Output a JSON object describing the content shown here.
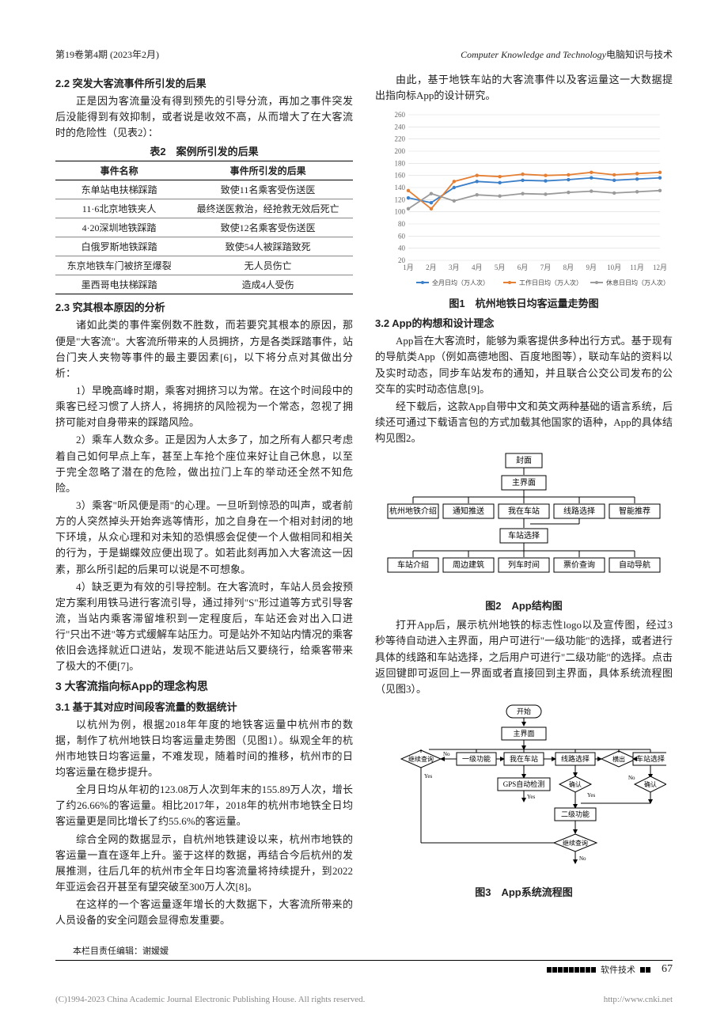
{
  "header": {
    "left": "第19卷第4期 (2023年2月)",
    "right_en": "Computer Knowledge and Technology",
    "right_cn": "电脑知识与技术"
  },
  "left_col": {
    "s22_title": "2.2 突发大客流事件所引发的后果",
    "s22_p1": "正是因为客流量没有得到预先的引导分流，再加之事件突发后没能得到有效抑制，或者说是收效不高，从而增大了在大客流时的危险性（见表2）：",
    "table2_cap": "表2　案例所引发的后果",
    "table2": {
      "cols": [
        "事件名称",
        "事件所引发的后果"
      ],
      "rows": [
        [
          "东单站电扶梯踩踏",
          "致使11名乘客受伤送医"
        ],
        [
          "11·6北京地铁夹人",
          "最终送医救治，经抢救无效后死亡"
        ],
        [
          "4·20深圳地铁踩踏",
          "致使12名乘客受伤送医"
        ],
        [
          "白俄罗斯地铁踩踏",
          "致使54人被踩踏致死"
        ],
        [
          "东京地铁车门被挤至爆裂",
          "无人员伤亡"
        ],
        [
          "墨西哥电扶梯踩踏",
          "造成4人受伤"
        ]
      ]
    },
    "s23_title": "2.3 究其根本原因的分析",
    "s23_p1": "诸如此类的事件案例数不胜数，而若要究其根本的原因，那便是\"大客流\"。大客流所带来的人员拥挤，方是各类踩踏事件，站台门夹人夹物等事件的最主要因素[6]，以下将分点对其做出分析：",
    "s23_p2": "1）早晚高峰时期，乘客对拥挤习以为常。在这个时间段中的乘客已经习惯了人挤人，将拥挤的风险视为一个常态，忽视了拥挤可能对自身带来的踩踏风险。",
    "s23_p3": "2）乘车人数众多。正是因为人太多了，加之所有人都只考虑着自己如何早点上车，甚至上车抢个座位来好让自己休息，以至于完全忽略了潜在的危险，做出拉门上车的举动还全然不知危险。",
    "s23_p4": "3）乘客\"听风便是雨\"的心理。一旦听到惊恐的叫声，或者前方的人突然掉头开始奔逃等情形，加之自身在一个相对封闭的地下环境，从众心理和对未知的恐惧感会促使一个人做相同和相关的行为，于是蝴蝶效应便出现了。如若此刻再加入大客流这一因素，那么所引起的后果可以说是不可想象。",
    "s23_p5": "4）缺乏更为有效的引导控制。在大客流时，车站人员会按预定方案利用铁马进行客流引导，通过排列\"S\"形过道等方式引导客流，当站内乘客滞留堆积到一定程度后，车站还会对出入口进行\"只出不进\"等方式缓解车站压力。可是站外不知站内情况的乘客依旧会选择就近口进站，发现不能进站后又要绕行，给乘客带来了极大的不便[7]。",
    "s3_title": "3 大客流指向标App的理念构思",
    "s31_title": "3.1 基于其对应时间段客流量的数据统计",
    "s31_p1": "以杭州为例，根据2018年年度的地铁客运量中杭州市的数据，制作了杭州地铁日均客运量走势图（见图1）。纵观全年的杭州市地铁日均客运量，不难发现，随着时间的推移，杭州市的日均客运量在稳步提升。",
    "s31_p2": "全月日均从年初的123.08万人次到年末的155.89万人次，增长了约26.66%的客运量。相比2017年，2018年的杭州市地铁全日均客运量更是同比增长了约55.6%的客运量。",
    "s31_p3": "综合全网的数据显示，自杭州地铁建设以来，杭州市地铁的客运量一直在逐年上升。鉴于这样的数据，再结合今后杭州的发展推测，往后几年的杭州市全年日均客流量将持续提升，到2022年亚运会召开甚至有望突破至300万人次[8]。",
    "s31_p4": "在这样的一个客运量逐年增长的大数据下，大客流所带来的人员设备的安全问题会显得愈发重要。"
  },
  "right_col": {
    "intro": "由此，基于地铁车站的大客流事件以及客运量这一大数据提出指向标App的设计研究。",
    "chart1": {
      "type": "line",
      "title": "图1　杭州地铁日均客运量走势图",
      "x_labels": [
        "1月",
        "2月",
        "3月",
        "4月",
        "5月",
        "6月",
        "7月",
        "8月",
        "9月",
        "10月",
        "11月",
        "12月"
      ],
      "y_ticks": [
        20,
        40,
        60,
        80,
        100,
        120,
        140,
        160,
        180,
        200,
        220,
        240,
        260
      ],
      "ylim": [
        20,
        260
      ],
      "series": [
        {
          "name": "全月日均（万人次）",
          "color": "#3b7fc9",
          "values": [
            123,
            115,
            140,
            150,
            148,
            152,
            151,
            153,
            156,
            152,
            154,
            156
          ]
        },
        {
          "name": "工作日日均（万人次）",
          "color": "#e57f33",
          "values": [
            135,
            105,
            150,
            160,
            158,
            162,
            160,
            161,
            165,
            161,
            163,
            165
          ]
        },
        {
          "name": "休息日日均（万人次）",
          "color": "#9a9a9a",
          "values": [
            105,
            130,
            118,
            128,
            126,
            130,
            129,
            132,
            134,
            131,
            133,
            135
          ]
        }
      ],
      "background": "#ffffff",
      "grid_color": "#d9d9d9",
      "label_fontsize": 9
    },
    "s32_title": "3.2 App的构想和设计理念",
    "s32_p1": "App旨在大客流时，能够为乘客提供多种出行方式。基于现有的导航类App（例如高德地图、百度地图等），联动车站的资料以及实时动态，同步车站发布的通知，并且联合公交公司发布的公交车的实时动态信息[9]。",
    "s32_p2": "经下载后，这款App自带中文和英文两种基础的语言系统，后续还可通过下载语言包的方式加载其他国家的语种，App的具体结构见图2。",
    "tree": {
      "title": "图2　App结构图",
      "root": "封面",
      "l1": "主界面",
      "l2": [
        "杭州地铁介绍",
        "通知推送",
        "我在车站",
        "线路选择",
        "智能推荐"
      ],
      "l3_mid": "车站选择",
      "l4": [
        "车站介绍",
        "周边建筑",
        "列车时间",
        "票价查询",
        "自动导航"
      ],
      "box_stroke": "#000000",
      "box_fill": "#ffffff",
      "font_size": 10
    },
    "s32_p3": "打开App后，展示杭州地铁的标志性logo以及宣传图，经过3秒等待自动进入主界面，用户可进行\"一级功能\"的选择，或者进行具体的线路和车站选择，之后用户可进行\"二级功能\"的选择。点击返回键即可返回上一界面或者直接回到主界面，具体系统流程图（见图3）。",
    "flow": {
      "title": "图3　App系统流程图",
      "nodes": {
        "start": "开始",
        "main": "主界面",
        "q1": "继续查询",
        "f1": "一级功能",
        "station": "我在车站",
        "route": "线路选择",
        "end1": "横出",
        "sel": "车站选择",
        "gps": "GPS自动检测",
        "ok1": "确认",
        "ok2": "确认",
        "f2": "二级功能",
        "q2": "继续查询"
      },
      "edge_labels": {
        "yes": "Yes",
        "no": "No"
      }
    }
  },
  "footer": {
    "editor": "本栏目责任编辑：谢嫒嫒",
    "section": "软件技术",
    "page": "67",
    "copyright_l": "(C)1994-2023 China Academic Journal Electronic Publishing House. All rights reserved.",
    "copyright_r": "http://www.cnki.net"
  }
}
